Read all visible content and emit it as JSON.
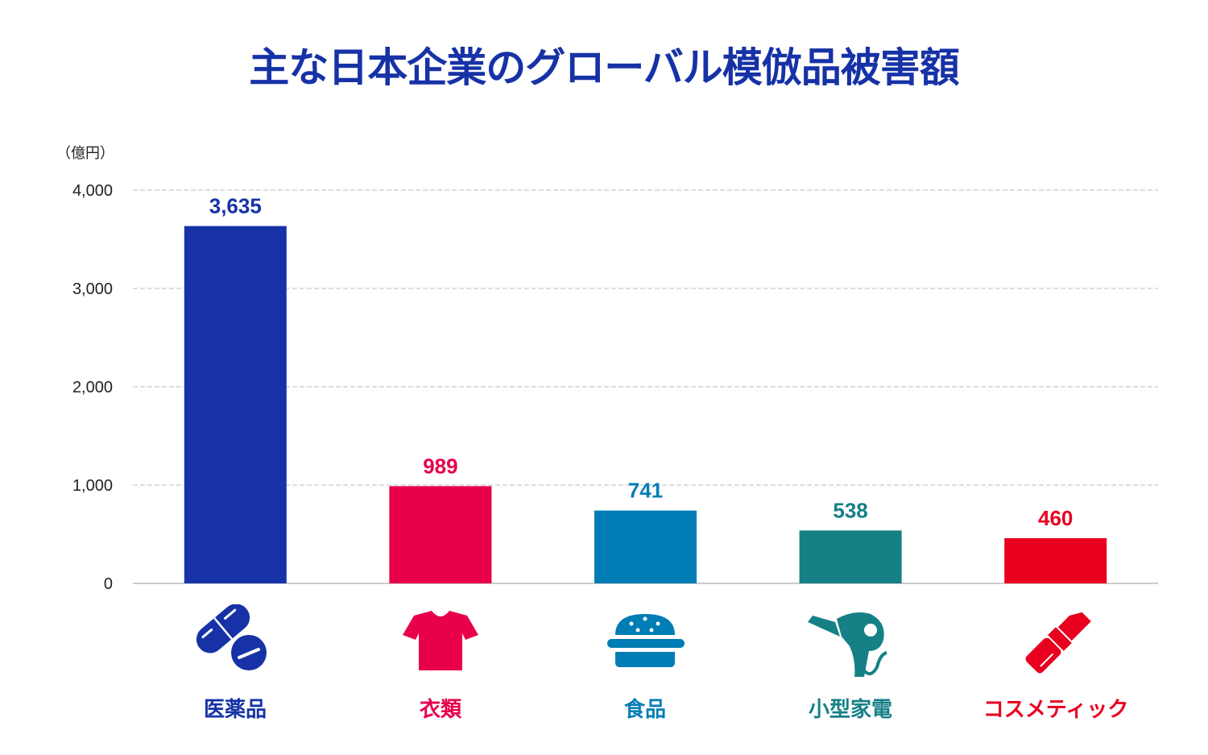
{
  "chart_data": {
    "type": "bar",
    "title": "主な日本企業のグローバル模倣品被害額",
    "ylabel": "（億円）",
    "xlabel": "",
    "ylim": [
      0,
      4000
    ],
    "yticks": [
      0,
      1000,
      2000,
      3000,
      4000
    ],
    "ytick_labels": [
      "0",
      "1,000",
      "2,000",
      "3,000",
      "4,000"
    ],
    "grid": true,
    "categories": [
      "医薬品",
      "衣類",
      "食品",
      "小型家電",
      "コスメティック"
    ],
    "values": [
      3635,
      989,
      741,
      538,
      460
    ],
    "value_labels": [
      "3,635",
      "989",
      "741",
      "538",
      "460"
    ],
    "colors": [
      "#1632a6",
      "#e8004a",
      "#007db5",
      "#168087",
      "#e8001e"
    ],
    "icons": [
      "pill-icon",
      "tshirt-icon",
      "burger-icon",
      "hair-dryer-icon",
      "lipstick-icon"
    ]
  }
}
